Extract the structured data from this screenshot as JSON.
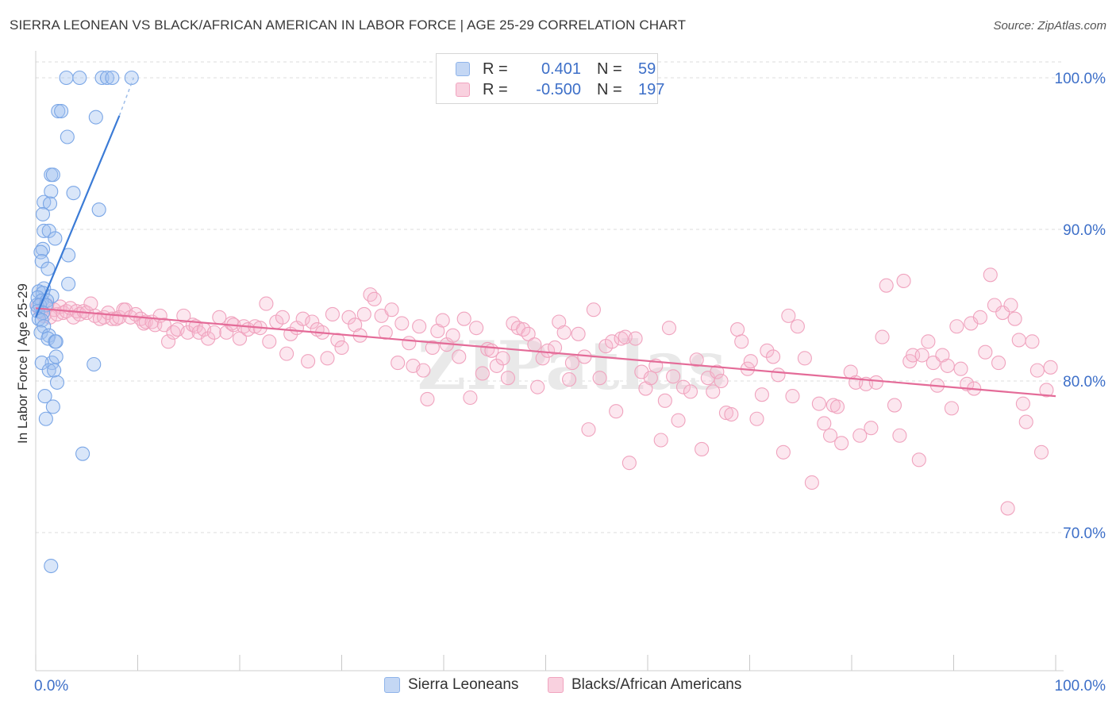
{
  "header": {
    "title": "SIERRA LEONEAN VS BLACK/AFRICAN AMERICAN IN LABOR FORCE | AGE 25-29 CORRELATION CHART",
    "source": "Source: ZipAtlas.com"
  },
  "legend": {
    "rows": [
      {
        "r_label": "R =",
        "r_value": "0.401",
        "n_label": "N =",
        "n_value": "59",
        "color": "#8fb4ea",
        "fill": "#c4d7f4"
      },
      {
        "r_label": "R =",
        "r_value": "-0.500",
        "n_label": "N =",
        "n_value": "197",
        "color": "#f1a4bf",
        "fill": "#f9d1df"
      }
    ]
  },
  "bottom_legend": [
    {
      "label": "Sierra Leoneans",
      "color": "#8fb4ea",
      "fill": "#c4d7f4"
    },
    {
      "label": "Blacks/African Americans",
      "color": "#f1a4bf",
      "fill": "#f9d1df"
    }
  ],
  "colors": {
    "blue": "#3d6fc8",
    "blue_line": "#3b7bd6",
    "pink_line": "#e46b98",
    "grid": "#dcdcdc",
    "tick_label": "#3d6fc8"
  },
  "chart_data": {
    "type": "scatter",
    "ylabel": "In Labor Force | Age 25-29",
    "xlabel": "",
    "xlim": [
      0,
      100
    ],
    "ylim": [
      60.0,
      101.0
    ],
    "x_tick_labels": [
      {
        "value": 0,
        "label": "0.0%"
      },
      {
        "value": 100,
        "label": "100.0%"
      }
    ],
    "y_ticks": [
      {
        "value": 100,
        "label": "100.0%"
      },
      {
        "value": 90,
        "label": "90.0%"
      },
      {
        "value": 80,
        "label": "80.0%"
      },
      {
        "value": 70,
        "label": "70.0%"
      }
    ],
    "watermark": "ZIPatlas",
    "grid": true,
    "series": [
      {
        "name": "Sierra Leoneans",
        "trend": {
          "x": [
            0.0,
            8.2
          ],
          "y": [
            84.2,
            97.5
          ],
          "dashed_to": [
            9.6,
            100.0
          ]
        },
        "points": [
          [
            3.0,
            100.0
          ],
          [
            4.3,
            100.0
          ],
          [
            6.5,
            100.0
          ],
          [
            7.0,
            100.0
          ],
          [
            7.5,
            100.0
          ],
          [
            9.4,
            100.0
          ],
          [
            2.2,
            97.8
          ],
          [
            2.5,
            97.8
          ],
          [
            5.9,
            97.4
          ],
          [
            3.1,
            96.1
          ],
          [
            1.5,
            93.6
          ],
          [
            1.7,
            93.6
          ],
          [
            1.5,
            92.5
          ],
          [
            3.7,
            92.4
          ],
          [
            0.8,
            91.8
          ],
          [
            1.4,
            91.7
          ],
          [
            6.2,
            91.3
          ],
          [
            0.7,
            91.0
          ],
          [
            0.8,
            89.9
          ],
          [
            1.3,
            89.9
          ],
          [
            1.9,
            89.4
          ],
          [
            0.7,
            88.7
          ],
          [
            0.5,
            88.5
          ],
          [
            3.2,
            88.3
          ],
          [
            0.6,
            87.9
          ],
          [
            1.2,
            87.4
          ],
          [
            3.2,
            86.4
          ],
          [
            0.8,
            86.1
          ],
          [
            0.3,
            85.9
          ],
          [
            0.7,
            85.8
          ],
          [
            0.2,
            85.5
          ],
          [
            1.6,
            85.6
          ],
          [
            0.6,
            85.3
          ],
          [
            1.1,
            85.3
          ],
          [
            0.1,
            85.0
          ],
          [
            0.4,
            85.0
          ],
          [
            1.0,
            85.0
          ],
          [
            0.2,
            84.6
          ],
          [
            0.7,
            84.5
          ],
          [
            0.3,
            84.1
          ],
          [
            0.6,
            84.0
          ],
          [
            0.8,
            83.6
          ],
          [
            0.5,
            83.2
          ],
          [
            1.3,
            83.0
          ],
          [
            1.2,
            82.8
          ],
          [
            1.9,
            82.6
          ],
          [
            2.0,
            82.6
          ],
          [
            1.6,
            81.2
          ],
          [
            5.7,
            81.1
          ],
          [
            0.6,
            81.2
          ],
          [
            1.3,
            80.7
          ],
          [
            1.8,
            80.7
          ],
          [
            2.1,
            79.9
          ],
          [
            1.7,
            78.3
          ],
          [
            1.0,
            77.5
          ],
          [
            4.6,
            75.2
          ],
          [
            1.5,
            67.8
          ],
          [
            2.0,
            81.6
          ],
          [
            0.9,
            79.0
          ]
        ]
      },
      {
        "name": "Blacks/African Americans",
        "trend": {
          "x": [
            0.0,
            100.0
          ],
          "y": [
            84.8,
            79.0
          ]
        },
        "points": [
          [
            0.2,
            84.9
          ],
          [
            0.5,
            84.6
          ],
          [
            0.8,
            84.3
          ],
          [
            1.1,
            85.0
          ],
          [
            1.4,
            84.2
          ],
          [
            1.8,
            84.7
          ],
          [
            2.1,
            84.4
          ],
          [
            2.4,
            84.9
          ],
          [
            2.7,
            84.5
          ],
          [
            3.0,
            84.6
          ],
          [
            3.4,
            84.8
          ],
          [
            3.7,
            84.2
          ],
          [
            4.0,
            84.6
          ],
          [
            4.3,
            84.4
          ],
          [
            4.7,
            84.6
          ],
          [
            5.0,
            84.5
          ],
          [
            5.4,
            85.1
          ],
          [
            5.8,
            84.3
          ],
          [
            6.3,
            84.1
          ],
          [
            6.7,
            84.2
          ],
          [
            7.1,
            84.5
          ],
          [
            7.5,
            84.1
          ],
          [
            7.9,
            84.1
          ],
          [
            8.2,
            84.2
          ],
          [
            8.6,
            84.7
          ],
          [
            8.8,
            84.7
          ],
          [
            9.3,
            84.2
          ],
          [
            9.8,
            84.4
          ],
          [
            10.3,
            84.1
          ],
          [
            10.6,
            83.8
          ],
          [
            10.8,
            83.9
          ],
          [
            11.4,
            83.9
          ],
          [
            11.7,
            83.7
          ],
          [
            12.2,
            84.3
          ],
          [
            12.6,
            83.7
          ],
          [
            13.0,
            82.6
          ],
          [
            13.5,
            83.2
          ],
          [
            13.9,
            83.4
          ],
          [
            14.5,
            84.3
          ],
          [
            14.9,
            83.2
          ],
          [
            15.4,
            83.7
          ],
          [
            15.7,
            83.6
          ],
          [
            16.0,
            83.2
          ],
          [
            16.5,
            83.4
          ],
          [
            16.9,
            82.8
          ],
          [
            17.5,
            83.2
          ],
          [
            18.0,
            84.2
          ],
          [
            18.7,
            83.2
          ],
          [
            19.2,
            83.8
          ],
          [
            19.4,
            83.7
          ],
          [
            20.0,
            82.8
          ],
          [
            20.4,
            83.6
          ],
          [
            20.8,
            83.4
          ],
          [
            21.5,
            83.6
          ],
          [
            22.0,
            83.5
          ],
          [
            22.6,
            85.1
          ],
          [
            22.9,
            82.6
          ],
          [
            23.6,
            83.9
          ],
          [
            24.2,
            84.2
          ],
          [
            24.6,
            81.8
          ],
          [
            25.0,
            83.1
          ],
          [
            25.6,
            83.5
          ],
          [
            26.2,
            84.1
          ],
          [
            26.7,
            81.3
          ],
          [
            27.1,
            83.9
          ],
          [
            27.6,
            83.4
          ],
          [
            28.1,
            83.2
          ],
          [
            28.6,
            81.5
          ],
          [
            29.1,
            84.4
          ],
          [
            29.6,
            82.7
          ],
          [
            30.0,
            82.2
          ],
          [
            30.7,
            84.2
          ],
          [
            31.3,
            83.7
          ],
          [
            31.8,
            83.0
          ],
          [
            32.2,
            84.4
          ],
          [
            32.8,
            85.7
          ],
          [
            33.2,
            85.4
          ],
          [
            33.9,
            84.3
          ],
          [
            34.3,
            83.2
          ],
          [
            34.9,
            84.7
          ],
          [
            35.5,
            81.2
          ],
          [
            35.9,
            83.8
          ],
          [
            36.6,
            82.5
          ],
          [
            37.0,
            81.0
          ],
          [
            37.6,
            83.6
          ],
          [
            38.0,
            80.7
          ],
          [
            38.4,
            78.8
          ],
          [
            38.9,
            82.2
          ],
          [
            39.4,
            83.3
          ],
          [
            39.9,
            84.0
          ],
          [
            40.3,
            82.4
          ],
          [
            40.9,
            83.0
          ],
          [
            41.5,
            81.6
          ],
          [
            42.0,
            84.1
          ],
          [
            42.6,
            78.9
          ],
          [
            43.2,
            83.5
          ],
          [
            43.8,
            80.5
          ],
          [
            44.3,
            82.1
          ],
          [
            44.7,
            82.0
          ],
          [
            45.2,
            81.0
          ],
          [
            45.8,
            81.5
          ],
          [
            46.3,
            80.2
          ],
          [
            46.8,
            83.8
          ],
          [
            47.3,
            83.5
          ],
          [
            47.8,
            83.4
          ],
          [
            48.3,
            83.1
          ],
          [
            48.9,
            82.4
          ],
          [
            49.2,
            79.6
          ],
          [
            49.7,
            81.5
          ],
          [
            50.2,
            82.0
          ],
          [
            50.9,
            82.2
          ],
          [
            51.3,
            83.9
          ],
          [
            51.8,
            83.2
          ],
          [
            52.3,
            80.1
          ],
          [
            52.6,
            81.2
          ],
          [
            53.2,
            83.1
          ],
          [
            53.8,
            81.6
          ],
          [
            54.2,
            76.8
          ],
          [
            54.7,
            84.7
          ],
          [
            55.3,
            80.2
          ],
          [
            55.9,
            82.3
          ],
          [
            56.5,
            82.6
          ],
          [
            56.9,
            78.0
          ],
          [
            57.4,
            82.8
          ],
          [
            57.8,
            82.9
          ],
          [
            58.2,
            74.6
          ],
          [
            58.8,
            82.8
          ],
          [
            59.4,
            80.6
          ],
          [
            59.8,
            79.5
          ],
          [
            60.3,
            80.2
          ],
          [
            60.8,
            81.0
          ],
          [
            61.3,
            76.1
          ],
          [
            61.7,
            78.7
          ],
          [
            62.1,
            83.5
          ],
          [
            62.5,
            80.3
          ],
          [
            63.0,
            77.4
          ],
          [
            63.5,
            79.6
          ],
          [
            64.2,
            79.3
          ],
          [
            64.8,
            81.4
          ],
          [
            65.3,
            75.5
          ],
          [
            65.9,
            80.2
          ],
          [
            66.4,
            79.3
          ],
          [
            66.8,
            80.6
          ],
          [
            67.2,
            80.0
          ],
          [
            67.7,
            77.9
          ],
          [
            68.2,
            77.8
          ],
          [
            68.8,
            83.4
          ],
          [
            69.2,
            82.6
          ],
          [
            69.8,
            80.8
          ],
          [
            70.1,
            81.3
          ],
          [
            70.7,
            77.5
          ],
          [
            71.2,
            79.1
          ],
          [
            71.7,
            82.0
          ],
          [
            72.3,
            81.6
          ],
          [
            72.8,
            80.4
          ],
          [
            73.3,
            75.3
          ],
          [
            73.8,
            84.3
          ],
          [
            74.2,
            79.0
          ],
          [
            74.7,
            83.6
          ],
          [
            75.4,
            81.5
          ],
          [
            76.1,
            73.3
          ],
          [
            76.8,
            78.5
          ],
          [
            77.3,
            77.2
          ],
          [
            77.9,
            76.4
          ],
          [
            78.2,
            78.4
          ],
          [
            78.6,
            78.3
          ],
          [
            79.0,
            75.9
          ],
          [
            79.9,
            80.6
          ],
          [
            80.4,
            79.9
          ],
          [
            80.8,
            76.4
          ],
          [
            81.4,
            79.8
          ],
          [
            81.9,
            76.9
          ],
          [
            82.4,
            79.9
          ],
          [
            83.0,
            82.9
          ],
          [
            83.4,
            86.3
          ],
          [
            84.2,
            78.4
          ],
          [
            84.7,
            76.4
          ],
          [
            85.1,
            86.6
          ],
          [
            85.7,
            81.3
          ],
          [
            86.0,
            81.7
          ],
          [
            86.6,
            74.8
          ],
          [
            86.9,
            81.7
          ],
          [
            87.5,
            82.6
          ],
          [
            88.0,
            81.2
          ],
          [
            88.4,
            79.7
          ],
          [
            88.9,
            81.7
          ],
          [
            89.4,
            81.0
          ],
          [
            89.8,
            78.2
          ],
          [
            90.3,
            83.6
          ],
          [
            90.7,
            80.8
          ],
          [
            91.3,
            79.8
          ],
          [
            91.7,
            83.8
          ],
          [
            92.0,
            79.5
          ],
          [
            92.6,
            84.2
          ],
          [
            93.1,
            81.9
          ],
          [
            93.6,
            87.0
          ],
          [
            94.0,
            85.0
          ],
          [
            94.4,
            81.2
          ],
          [
            94.8,
            84.5
          ],
          [
            95.3,
            71.6
          ],
          [
            95.6,
            85.0
          ],
          [
            96.0,
            84.1
          ],
          [
            96.4,
            82.7
          ],
          [
            96.8,
            78.5
          ],
          [
            97.1,
            77.3
          ],
          [
            97.7,
            82.6
          ],
          [
            98.2,
            80.7
          ],
          [
            98.6,
            75.3
          ],
          [
            99.1,
            79.4
          ],
          [
            99.5,
            80.9
          ]
        ]
      }
    ]
  }
}
